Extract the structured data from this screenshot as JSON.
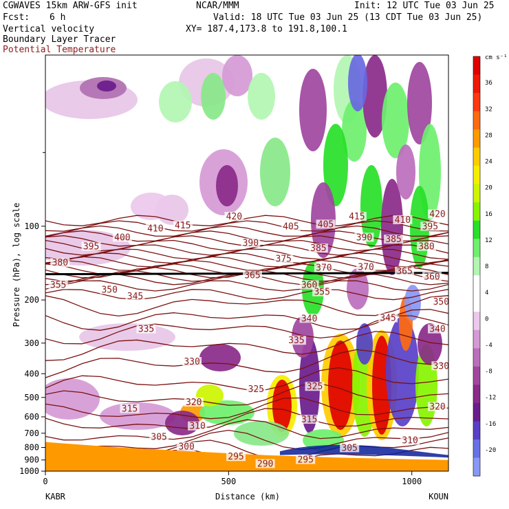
{
  "header": {
    "model": "CGWAVES 15km ARW-GFS init",
    "fcst_label": "Fcst:",
    "fcst_value": "6 h",
    "field1": "Vertical velocity",
    "field2": "Boundary Layer Tracer",
    "field3": "Potential Temperature",
    "org": "NCAR/MMM",
    "init": "Init: 12 UTC Tue 03 Jun 25",
    "valid": "Valid: 18 UTC Tue 03 Jun 25 (13 CDT Tue 03 Jun 25)",
    "xy": "XY= 187.4,173.8 to 191.8,100.1"
  },
  "colors": {
    "contour": "#7a1010",
    "terrain": "#ff9900",
    "tracer": "#0a1f99",
    "frame": "#000000"
  },
  "chart_data": {
    "type": "heatmap",
    "ylabel": "Pressure (hPa), log scale",
    "xlabel": "Distance (km)",
    "x_ticks": [
      "0",
      "500",
      "1000"
    ],
    "x_tick_values": [
      0,
      500,
      1000
    ],
    "xlim": [
      0,
      1100
    ],
    "y_ticks": [
      "100",
      "200",
      "300",
      "400",
      "500",
      "600",
      "700",
      "800",
      "900",
      "1000"
    ],
    "y_tick_values": [
      100,
      200,
      300,
      400,
      500,
      600,
      700,
      800,
      900,
      1000
    ],
    "ylim": [
      1000,
      20
    ],
    "y_scale": "log",
    "left_station": "KABR",
    "right_station": "KOUN",
    "colorbar": {
      "units": "cm s⁻¹",
      "labels": [
        "36",
        "32",
        "28",
        "24",
        "20",
        "16",
        "12",
        "8",
        "4",
        "0",
        "-4",
        "-8",
        "-12",
        "-16",
        "-20"
      ],
      "values": [
        36,
        32,
        28,
        24,
        20,
        16,
        12,
        8,
        4,
        0,
        -4,
        -8,
        -12,
        -16,
        -20
      ],
      "colors": [
        "#e00000",
        "#f01808",
        "#ff3810",
        "#ff6a10",
        "#ff9a00",
        "#ffcc00",
        "#f6ee00",
        "#cdf400",
        "#88f400",
        "#28e028",
        "#6ef06e",
        "#b2f6b2",
        "#ffffff",
        "#ffffff",
        "#ecc8ec",
        "#d59ad5",
        "#bc6ebc",
        "#a046a0",
        "#8a2a8a",
        "#6a1c8c",
        "#5840c8",
        "#6870e8",
        "#8898f4"
      ]
    },
    "theta_labels": [
      {
        "text": "420",
        "x": 515,
        "p": 92
      },
      {
        "text": "420",
        "x": 1070,
        "p": 90
      },
      {
        "text": "415",
        "x": 375,
        "p": 100
      },
      {
        "text": "415",
        "x": 850,
        "p": 92
      },
      {
        "text": "410",
        "x": 300,
        "p": 103
      },
      {
        "text": "410",
        "x": 975,
        "p": 95
      },
      {
        "text": "405",
        "x": 670,
        "p": 101
      },
      {
        "text": "405",
        "x": 765,
        "p": 99
      },
      {
        "text": "400",
        "x": 210,
        "p": 112
      },
      {
        "text": "395",
        "x": 125,
        "p": 122
      },
      {
        "text": "395",
        "x": 1050,
        "p": 101
      },
      {
        "text": "390",
        "x": 560,
        "p": 118
      },
      {
        "text": "390",
        "x": 870,
        "p": 112
      },
      {
        "text": "385",
        "x": 745,
        "p": 124
      },
      {
        "text": "385",
        "x": 950,
        "p": 114
      },
      {
        "text": "380",
        "x": 40,
        "p": 142
      },
      {
        "text": "380",
        "x": 1040,
        "p": 122
      },
      {
        "text": "375",
        "x": 650,
        "p": 137
      },
      {
        "text": "370",
        "x": 760,
        "p": 149
      },
      {
        "text": "370",
        "x": 875,
        "p": 148
      },
      {
        "text": "365",
        "x": 565,
        "p": 160
      },
      {
        "text": "365",
        "x": 980,
        "p": 154
      },
      {
        "text": "360",
        "x": 720,
        "p": 175
      },
      {
        "text": "360",
        "x": 1055,
        "p": 162
      },
      {
        "text": "355",
        "x": 35,
        "p": 175
      },
      {
        "text": "355",
        "x": 755,
        "p": 187
      },
      {
        "text": "350",
        "x": 175,
        "p": 183
      },
      {
        "text": "350",
        "x": 1080,
        "p": 205
      },
      {
        "text": "345",
        "x": 245,
        "p": 195
      },
      {
        "text": "345",
        "x": 935,
        "p": 239
      },
      {
        "text": "340",
        "x": 720,
        "p": 240
      },
      {
        "text": "340",
        "x": 1070,
        "p": 265
      },
      {
        "text": "335",
        "x": 275,
        "p": 265
      },
      {
        "text": "335",
        "x": 685,
        "p": 295
      },
      {
        "text": "330",
        "x": 400,
        "p": 360
      },
      {
        "text": "330",
        "x": 1080,
        "p": 375
      },
      {
        "text": "325",
        "x": 575,
        "p": 466
      },
      {
        "text": "325",
        "x": 735,
        "p": 455
      },
      {
        "text": "320",
        "x": 405,
        "p": 527
      },
      {
        "text": "320",
        "x": 1070,
        "p": 550
      },
      {
        "text": "315",
        "x": 230,
        "p": 560
      },
      {
        "text": "315",
        "x": 720,
        "p": 620
      },
      {
        "text": "310",
        "x": 415,
        "p": 660
      },
      {
        "text": "310",
        "x": 995,
        "p": 755
      },
      {
        "text": "305",
        "x": 310,
        "p": 730
      },
      {
        "text": "305",
        "x": 830,
        "p": 810
      },
      {
        "text": "300",
        "x": 385,
        "p": 800
      },
      {
        "text": "295",
        "x": 520,
        "p": 880
      },
      {
        "text": "295",
        "x": 710,
        "p": 905
      },
      {
        "text": "290",
        "x": 600,
        "p": 940
      }
    ]
  }
}
